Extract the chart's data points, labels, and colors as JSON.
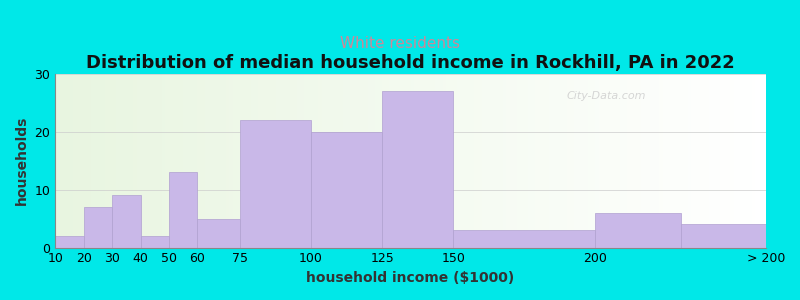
{
  "title": "Distribution of median household income in Rockhill, PA in 2022",
  "subtitle": "White residents",
  "xlabel": "household income ($1000)",
  "ylabel": "households",
  "bar_color": "#c9b8e8",
  "bar_edgecolor": "#b0a0d0",
  "bin_edges": [
    10,
    20,
    30,
    40,
    50,
    60,
    75,
    100,
    125,
    150,
    200,
    230,
    260
  ],
  "values": [
    2,
    7,
    9,
    2,
    13,
    5,
    22,
    20,
    27,
    3,
    6,
    4
  ],
  "tick_positions": [
    10,
    20,
    30,
    40,
    50,
    60,
    75,
    100,
    125,
    150,
    200,
    260
  ],
  "tick_labels": [
    "10",
    "20",
    "30",
    "40",
    "50",
    "60",
    "75",
    "100",
    "125",
    "150",
    "200",
    "> 200"
  ],
  "ylim": [
    0,
    30
  ],
  "yticks": [
    0,
    10,
    20,
    30
  ],
  "bg_color_left": "#e8f5e0",
  "bg_color_right": "#ffffff",
  "outer_bg": "#00e8e8",
  "title_fontsize": 13,
  "subtitle_fontsize": 11,
  "subtitle_color": "#cc8899",
  "axis_label_fontsize": 10,
  "tick_fontsize": 9,
  "watermark_text": "City-Data.com",
  "watermark_color": "#cccccc"
}
